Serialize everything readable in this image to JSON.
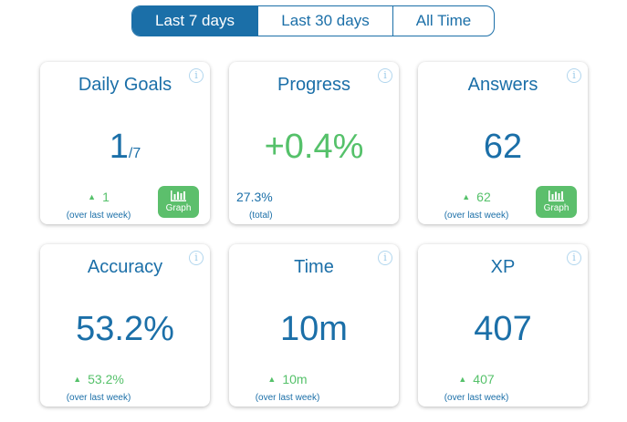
{
  "tabs": [
    {
      "label": "Last 7 days",
      "active": true
    },
    {
      "label": "Last 30 days",
      "active": false
    },
    {
      "label": "All Time",
      "active": false
    }
  ],
  "info_glyph": "i",
  "graph_label": "Graph",
  "delta_arrow": "▲",
  "cards": {
    "daily_goals": {
      "title": "Daily Goals",
      "value": "1",
      "value_suffix": "/7",
      "delta": "1",
      "note": "(over last week)"
    },
    "progress": {
      "title": "Progress",
      "value": "+0.4%",
      "sub_value": "27.3%",
      "note": "(total)"
    },
    "answers": {
      "title": "Answers",
      "value": "62",
      "delta": "62",
      "note": "(over last week)"
    },
    "accuracy": {
      "title": "Accuracy",
      "value": "53.2%",
      "delta": "53.2%",
      "note": "(over last week)"
    },
    "time": {
      "title": "Time",
      "value": "10m",
      "delta": "10m",
      "note": "(over last week)"
    },
    "xp": {
      "title": "XP",
      "value": "407",
      "delta": "407",
      "note": "(over last week)"
    }
  },
  "colors": {
    "primary": "#1b6fa8",
    "positive": "#55c16a",
    "button_green": "#5cbf6c",
    "info_icon": "#9ccbe9"
  }
}
